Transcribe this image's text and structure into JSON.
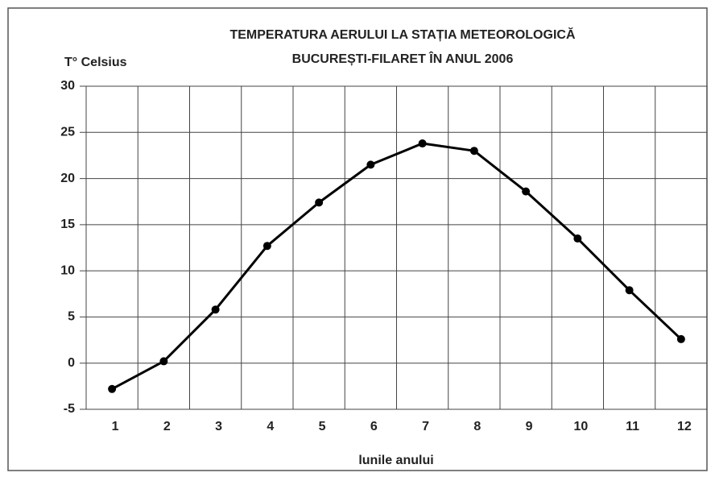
{
  "chart_data": {
    "type": "line",
    "title": [
      "TEMPERATURA AERULUI LA STAȚIA METEOROLOGICĂ",
      "BUCUREȘTI-FILARET ÎN ANUL 2006"
    ],
    "y_label": "T° Celsius",
    "x_label": "lunile anului",
    "categories": [
      "1",
      "2",
      "3",
      "4",
      "5",
      "6",
      "7",
      "8",
      "9",
      "10",
      "11",
      "12"
    ],
    "values": [
      -2.8,
      0.2,
      5.8,
      12.7,
      17.4,
      21.5,
      23.8,
      23.0,
      18.6,
      13.5,
      7.9,
      2.6
    ],
    "color": "#000000",
    "ylim": [
      -5,
      30
    ],
    "yticks": [
      -5,
      0,
      5,
      10,
      15,
      20,
      25,
      30
    ],
    "grid": true
  }
}
